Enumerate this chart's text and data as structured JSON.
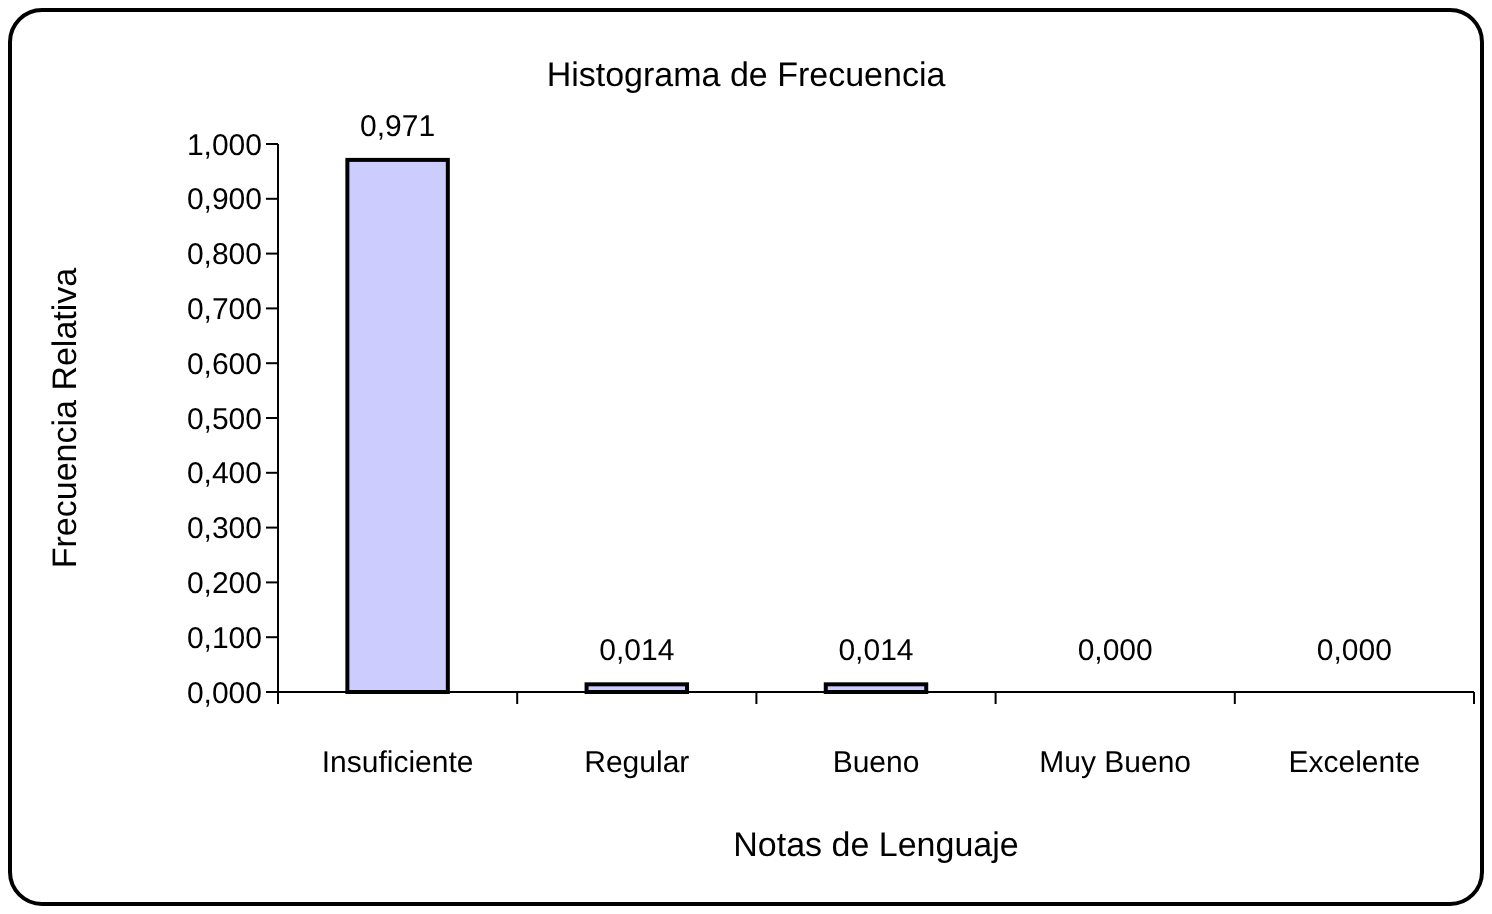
{
  "chart_data": {
    "type": "bar",
    "title": "Histograma de Frecuencia",
    "xlabel": "Notas de Lenguaje",
    "ylabel": "Frecuencia Relativa",
    "categories": [
      "Insuficiente",
      "Regular",
      "Bueno",
      "Muy Bueno",
      "Excelente"
    ],
    "values": [
      0.971,
      0.014,
      0.014,
      0,
      0
    ],
    "value_labels": [
      "0,971",
      "0,014",
      "0,014",
      "0,000",
      "0,000"
    ],
    "color": "#ccccff",
    "ylim": [
      0,
      1
    ],
    "yticks": [
      {
        "value": 0,
        "label": "0,000"
      },
      {
        "value": 0.1,
        "label": "0,100"
      },
      {
        "value": 0.2,
        "label": "0,200"
      },
      {
        "value": 0.3,
        "label": "0,300"
      },
      {
        "value": 0.4,
        "label": "0,400"
      },
      {
        "value": 0.5,
        "label": "0,500"
      },
      {
        "value": 0.6,
        "label": "0,600"
      },
      {
        "value": 0.7,
        "label": "0,700"
      },
      {
        "value": 0.8,
        "label": "0,800"
      },
      {
        "value": 0.9,
        "label": "0,900"
      },
      {
        "value": 1,
        "label": "1,000"
      }
    ],
    "grid": false
  }
}
